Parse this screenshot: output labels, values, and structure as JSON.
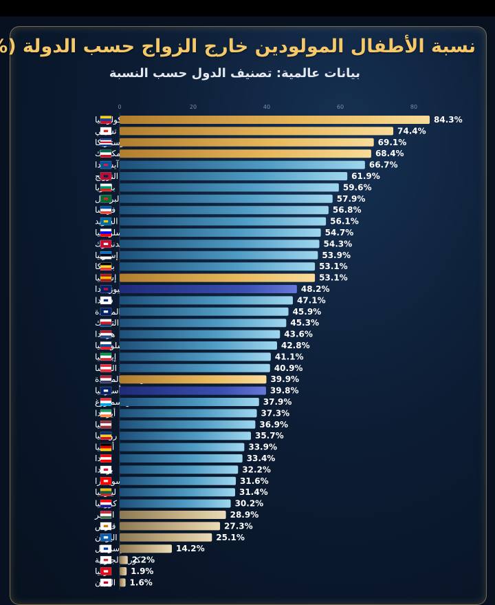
{
  "title": "نسبة الأطفال المولودين خارج الزواج حسب الدولة (%)",
  "subtitle": "بيانات عالمية: تصنيف الدول حسب النسبة",
  "colors": {
    "gold": "#e8b85c",
    "blue": "#5aa3c8",
    "indigo": "#3a4fb0",
    "beige": "#c9b48a",
    "background": "#07111f"
  },
  "chart_data": {
    "type": "bar",
    "orientation": "horizontal",
    "xlim": [
      0,
      100
    ],
    "xticks": [
      "0",
      "20",
      "40",
      "60",
      "80"
    ],
    "value_suffix": "%",
    "grid": false,
    "categories": [
      "كولومبيا",
      "تشيلي",
      "كوستاريكا",
      "المكسيك",
      "آيسلندا",
      "النرويج",
      "بلغاريا",
      "البرتغال",
      "فرنسا",
      "السويد",
      "سلوفينيا",
      "الدنمارك",
      "إستونيا",
      "بلجيكا",
      "إسبانيا",
      "نيوزيلندا",
      "فنلندا",
      "المملكة المتحدة",
      "التشيك",
      "هولندا",
      "سلوفاكيا",
      "إيطاليا",
      "النمسا",
      "الولايات المتحدة",
      "أستراليا",
      "لوكسمبورغ",
      "أيرلندا",
      "لاتفيا",
      "رومانيا",
      "ألمانيا",
      "كندا",
      "بولندا",
      "سويسرا",
      "ليتوانيا",
      "كرواتيا",
      "المجر",
      "قبرص",
      "اليونان",
      "إسرائيل",
      "كوريا الجنوبية",
      "تركيا",
      "اليابان"
    ],
    "values": [
      84.3,
      74.4,
      69.1,
      68.4,
      66.7,
      61.9,
      59.6,
      57.9,
      56.8,
      56.1,
      54.7,
      54.3,
      53.9,
      53.1,
      53.1,
      48.2,
      47.1,
      45.9,
      45.3,
      43.6,
      42.8,
      41.1,
      40.9,
      39.9,
      39.8,
      37.9,
      37.3,
      36.9,
      35.7,
      33.9,
      33.4,
      32.2,
      31.6,
      31.4,
      30.2,
      28.9,
      27.3,
      25.1,
      14.2,
      2.2,
      1.9,
      1.6
    ],
    "labels": [
      "84.3%",
      "74.4%",
      "69.1%",
      "68.4%",
      "66.7%",
      "61.9%",
      "59.6%",
      "57.9%",
      "56.8%",
      "56.1%",
      "54.7%",
      "54.3%",
      "53.9%",
      "53.1%",
      "53.1%",
      "48.2%",
      "47.1%",
      "45.9%",
      "45.3%",
      "43.6%",
      "42.8%",
      "41.1%",
      "40.9%",
      "39.9%",
      "39.8%",
      "37.9%",
      "37.3%",
      "36.9%",
      "35.7%",
      "33.9%",
      "33.4%",
      "32.2%",
      "31.6%",
      "31.4%",
      "30.2%",
      "28.9%",
      "27.3%",
      "25.1%",
      "14.2%",
      "2.2%",
      "1.9%",
      "1.6%"
    ],
    "bar_colors": [
      "gold",
      "gold",
      "gold",
      "gold",
      "blue",
      "blue",
      "blue",
      "blue",
      "blue",
      "blue",
      "blue",
      "blue",
      "blue",
      "blue",
      "gold",
      "indigo",
      "blue",
      "blue",
      "blue",
      "blue",
      "blue",
      "blue",
      "blue",
      "gold",
      "indigo",
      "blue",
      "blue",
      "blue",
      "blue",
      "blue",
      "blue",
      "blue",
      "blue",
      "blue",
      "blue",
      "beige",
      "beige",
      "beige",
      "beige",
      "beige",
      "beige",
      "beige"
    ],
    "flag_icons": [
      "colombia-flag-icon",
      "chile-flag-icon",
      "costa-rica-flag-icon",
      "mexico-flag-icon",
      "iceland-flag-icon",
      "norway-flag-icon",
      "bulgaria-flag-icon",
      "portugal-flag-icon",
      "france-flag-icon",
      "sweden-flag-icon",
      "slovenia-flag-icon",
      "denmark-flag-icon",
      "estonia-flag-icon",
      "belgium-flag-icon",
      "spain-flag-icon",
      "new-zealand-flag-icon",
      "finland-flag-icon",
      "uk-flag-icon",
      "czechia-flag-icon",
      "netherlands-flag-icon",
      "slovakia-flag-icon",
      "italy-flag-icon",
      "austria-flag-icon",
      "usa-flag-icon",
      "australia-flag-icon",
      "luxembourg-flag-icon",
      "ireland-flag-icon",
      "latvia-flag-icon",
      "romania-flag-icon",
      "germany-flag-icon",
      "canada-flag-icon",
      "poland-flag-icon",
      "switzerland-flag-icon",
      "lithuania-flag-icon",
      "croatia-flag-icon",
      "hungary-flag-icon",
      "cyprus-flag-icon",
      "greece-flag-icon",
      "israel-flag-icon",
      "south-korea-flag-icon",
      "turkey-flag-icon",
      "japan-flag-icon"
    ]
  }
}
